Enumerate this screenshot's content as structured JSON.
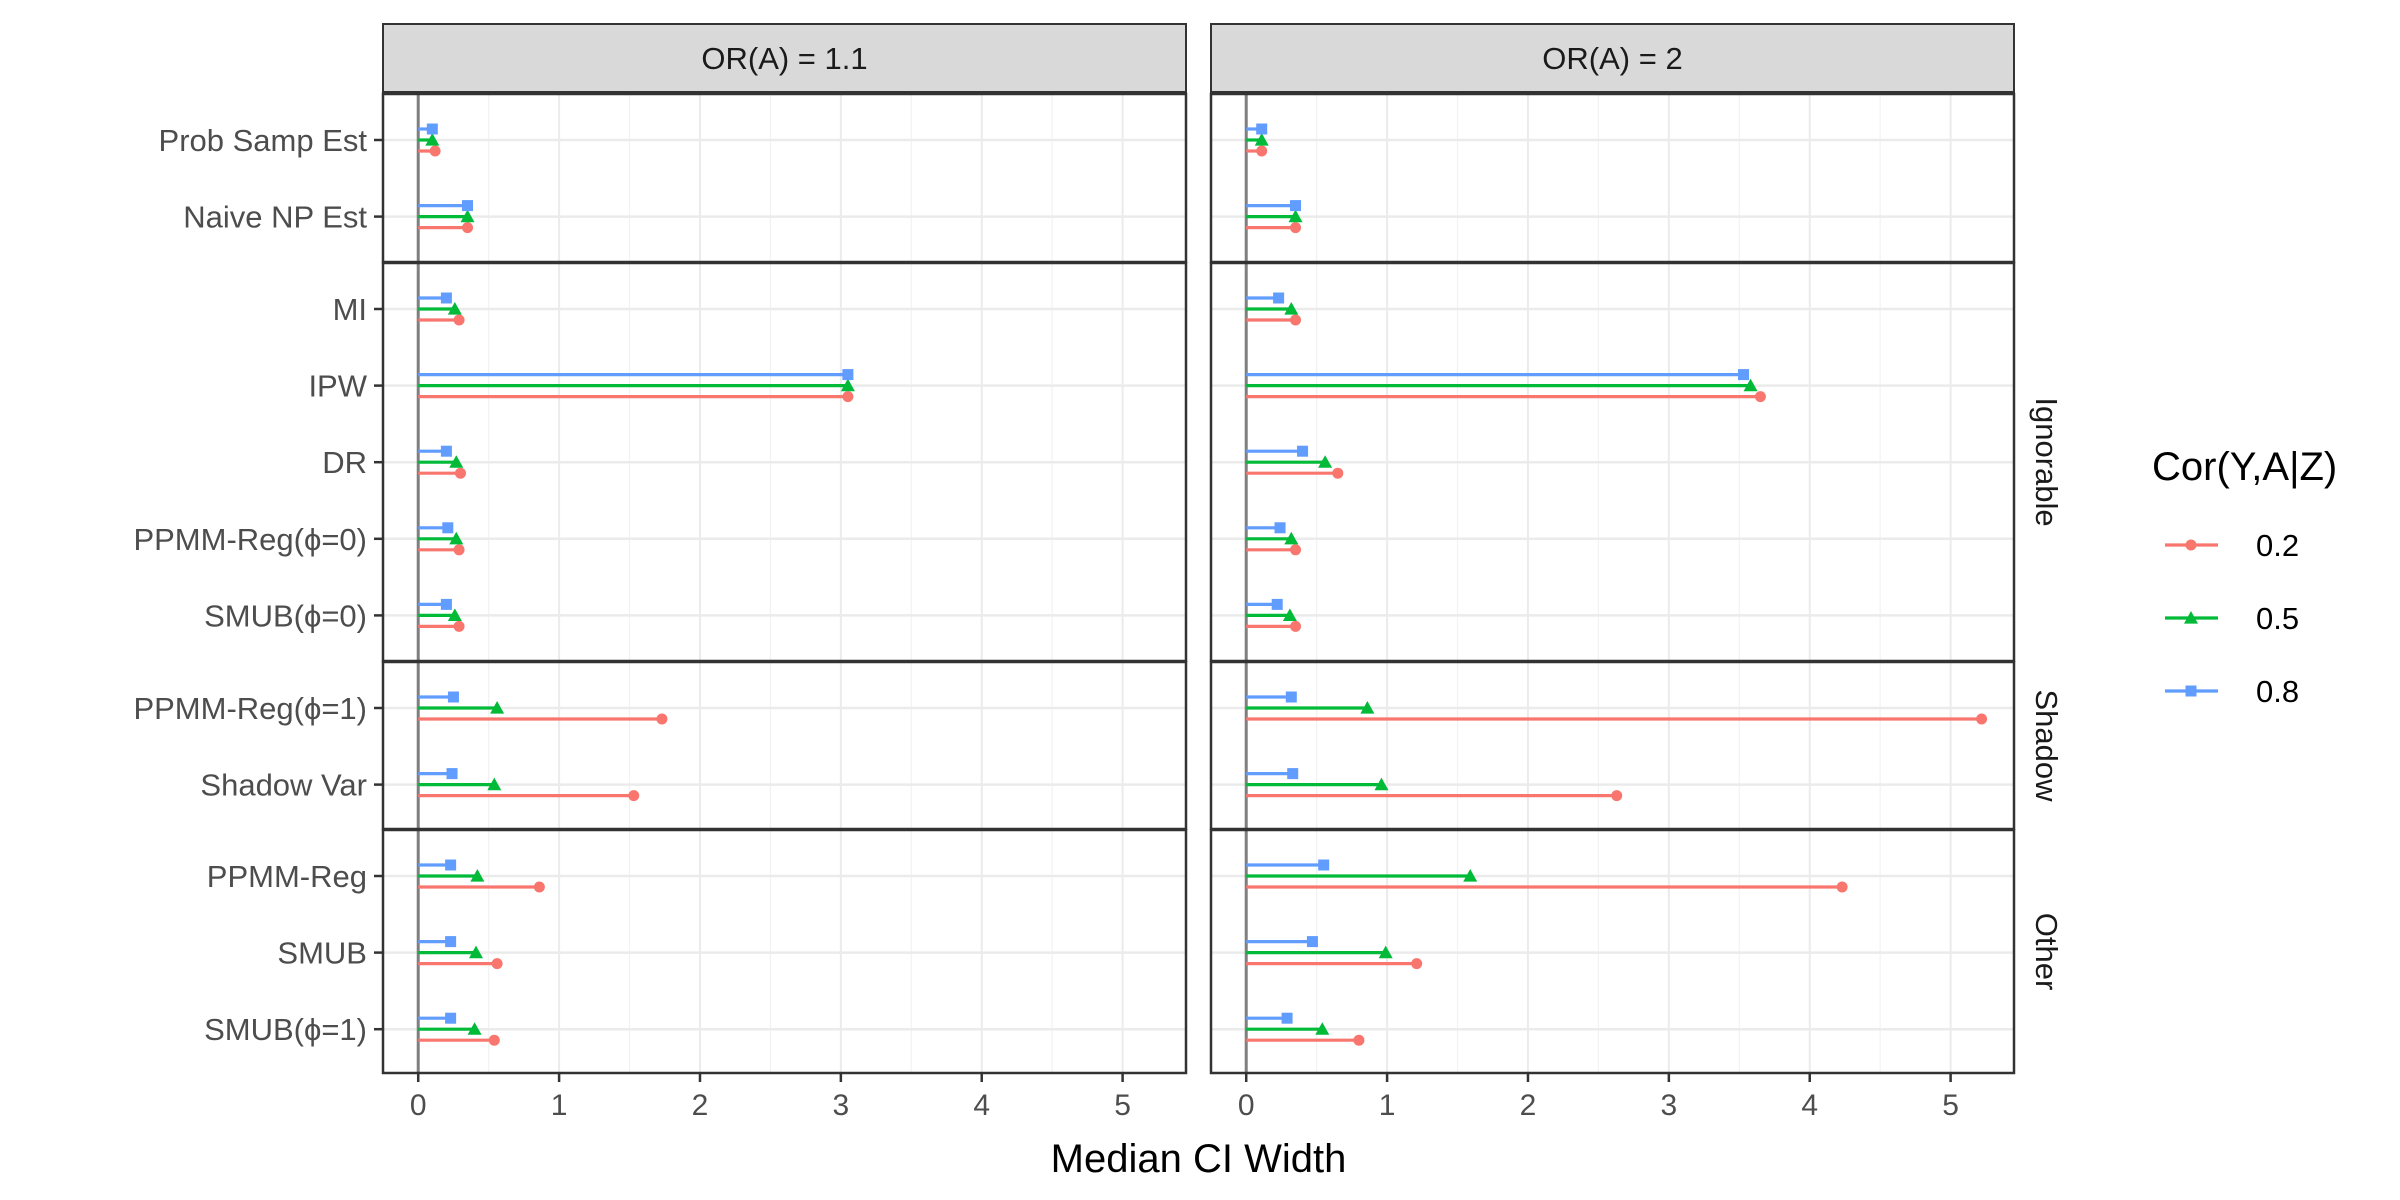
{
  "chart_data": {
    "type": "lollipop",
    "xlabel": "Median CI Width",
    "xlim": [
      -0.25,
      5.45
    ],
    "xticks": [
      0,
      1,
      2,
      3,
      4,
      5
    ],
    "grid": true,
    "legend": {
      "title": "Cor(Y,A|Z)",
      "position": "right"
    },
    "column_facets": [
      "OR(A) = 1.1",
      "OR(A) = 2"
    ],
    "row_facets": [
      {
        "label": "",
        "methods": [
          "Prob Samp Est",
          "Naive NP Est"
        ]
      },
      {
        "label": "Ignorable",
        "methods": [
          "MI",
          "IPW",
          "DR",
          "PPMM-Reg(ϕ=0)",
          "SMUB(ϕ=0)"
        ]
      },
      {
        "label": "Shadow",
        "methods": [
          "PPMM-Reg(ϕ=1)",
          "Shadow Var"
        ]
      },
      {
        "label": "Other",
        "methods": [
          "PPMM-Reg",
          "SMUB",
          "SMUB(ϕ=1)"
        ]
      }
    ],
    "series": [
      {
        "name": "0.2",
        "color": "#F8766D",
        "marker": "circle",
        "values": {
          "OR(A) = 1.1": {
            "Prob Samp Est": 0.12,
            "Naive NP Est": 0.35,
            "MI": 0.29,
            "IPW": 3.05,
            "DR": 0.3,
            "PPMM-Reg(ϕ=0)": 0.29,
            "SMUB(ϕ=0)": 0.29,
            "PPMM-Reg(ϕ=1)": 1.73,
            "Shadow Var": 1.53,
            "PPMM-Reg": 0.86,
            "SMUB": 0.56,
            "SMUB(ϕ=1)": 0.54
          },
          "OR(A) = 2": {
            "Prob Samp Est": 0.11,
            "Naive NP Est": 0.35,
            "MI": 0.35,
            "IPW": 3.65,
            "DR": 0.65,
            "PPMM-Reg(ϕ=0)": 0.35,
            "SMUB(ϕ=0)": 0.35,
            "PPMM-Reg(ϕ=1)": 5.22,
            "Shadow Var": 2.63,
            "PPMM-Reg": 4.23,
            "SMUB": 1.21,
            "SMUB(ϕ=1)": 0.8
          }
        }
      },
      {
        "name": "0.5",
        "color": "#00BA38",
        "marker": "triangle",
        "values": {
          "OR(A) = 1.1": {
            "Prob Samp Est": 0.1,
            "Naive NP Est": 0.35,
            "MI": 0.26,
            "IPW": 3.05,
            "DR": 0.27,
            "PPMM-Reg(ϕ=0)": 0.27,
            "SMUB(ϕ=0)": 0.26,
            "PPMM-Reg(ϕ=1)": 0.56,
            "Shadow Var": 0.54,
            "PPMM-Reg": 0.42,
            "SMUB": 0.41,
            "SMUB(ϕ=1)": 0.4
          },
          "OR(A) = 2": {
            "Prob Samp Est": 0.11,
            "Naive NP Est": 0.35,
            "MI": 0.32,
            "IPW": 3.58,
            "DR": 0.56,
            "PPMM-Reg(ϕ=0)": 0.32,
            "SMUB(ϕ=0)": 0.31,
            "PPMM-Reg(ϕ=1)": 0.86,
            "Shadow Var": 0.96,
            "PPMM-Reg": 1.59,
            "SMUB": 0.99,
            "SMUB(ϕ=1)": 0.54
          }
        }
      },
      {
        "name": "0.8",
        "color": "#619CFF",
        "marker": "square",
        "values": {
          "OR(A) = 1.1": {
            "Prob Samp Est": 0.1,
            "Naive NP Est": 0.35,
            "MI": 0.2,
            "IPW": 3.05,
            "DR": 0.2,
            "PPMM-Reg(ϕ=0)": 0.21,
            "SMUB(ϕ=0)": 0.2,
            "PPMM-Reg(ϕ=1)": 0.25,
            "Shadow Var": 0.24,
            "PPMM-Reg": 0.23,
            "SMUB": 0.23,
            "SMUB(ϕ=1)": 0.23
          },
          "OR(A) = 2": {
            "Prob Samp Est": 0.11,
            "Naive NP Est": 0.35,
            "MI": 0.23,
            "IPW": 3.53,
            "DR": 0.4,
            "PPMM-Reg(ϕ=0)": 0.24,
            "SMUB(ϕ=0)": 0.22,
            "PPMM-Reg(ϕ=1)": 0.32,
            "Shadow Var": 0.33,
            "PPMM-Reg": 0.55,
            "SMUB": 0.47,
            "SMUB(ϕ=1)": 0.29
          }
        }
      }
    ]
  }
}
